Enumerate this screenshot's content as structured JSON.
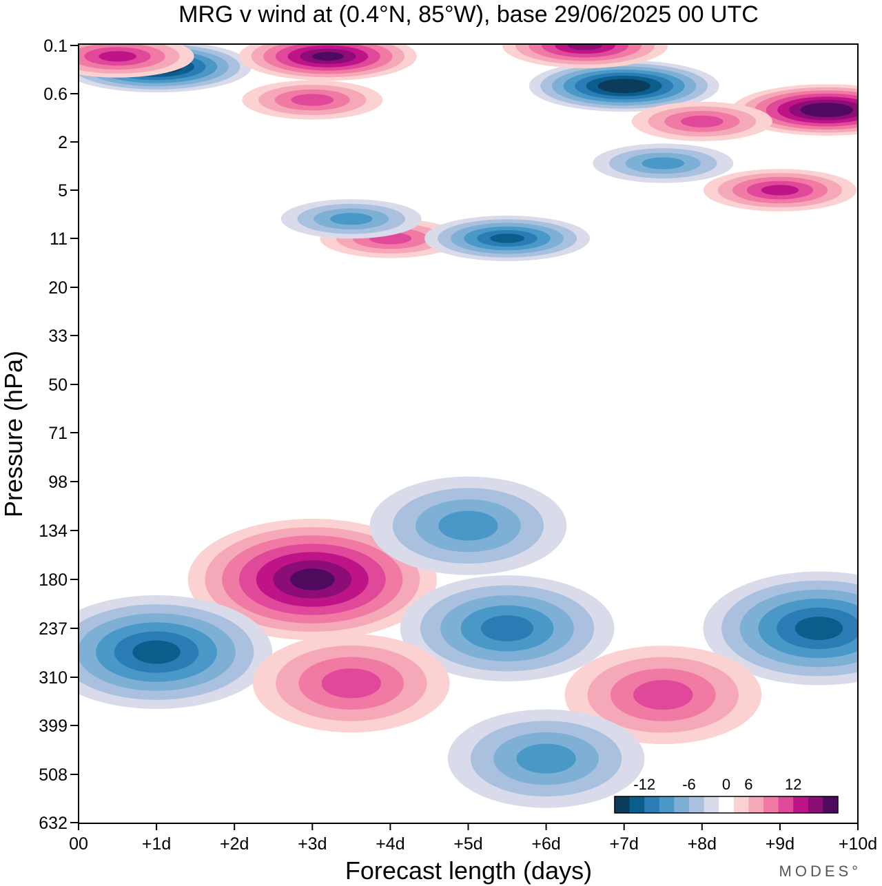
{
  "chart_data": {
    "type": "heatmap",
    "title": "MRG v wind at (0.4°N, 85°W),  base 29/06/2025  00 UTC",
    "xlabel": "Forecast length (days)",
    "ylabel": "Pressure (hPa)",
    "x_ticks": [
      "00",
      "+1d",
      "+2d",
      "+3d",
      "+4d",
      "+5d",
      "+6d",
      "+7d",
      "+8d",
      "+9d",
      "+10d"
    ],
    "xlim_days": [
      0,
      10
    ],
    "y_ticks": [
      "0.1",
      "0.6",
      "2",
      "5",
      "11",
      "20",
      "33",
      "50",
      "71",
      "98",
      "134",
      "180",
      "237",
      "310",
      "399",
      "508",
      "632"
    ],
    "y_scale": "log (pressure, top = 0.1 hPa)",
    "colorbar": {
      "tick_labels": [
        "-12",
        "-6",
        "0",
        "6",
        "12"
      ],
      "levels": [
        -16,
        -14,
        -12,
        -10,
        -8,
        -6,
        -4,
        -2,
        2,
        4,
        6,
        8,
        10,
        12,
        14,
        16
      ],
      "colors": [
        "#0c3c5c",
        "#0a5e8c",
        "#2a7db4",
        "#4a98c8",
        "#7eb0d6",
        "#a9c1de",
        "#d9dbea",
        "#ffffff",
        "#fbd1d1",
        "#f5a8b8",
        "#f07aa4",
        "#e0489a",
        "#bf1488",
        "#8c0c78",
        "#4e0a5c"
      ],
      "placement": "bottom-right inside plot"
    },
    "features": [
      {
        "day": 3.0,
        "hPa": 180,
        "v": 14,
        "kind": "max"
      },
      {
        "day": 1.0,
        "hPa": 270,
        "v": -12,
        "kind": "min"
      },
      {
        "day": 5.5,
        "hPa": 237,
        "v": -10,
        "kind": "min"
      },
      {
        "day": 9.5,
        "hPa": 237,
        "v": -12,
        "kind": "min"
      },
      {
        "day": 3.5,
        "hPa": 320,
        "v": 8,
        "kind": "max"
      },
      {
        "day": 7.5,
        "hPa": 340,
        "v": 8,
        "kind": "max"
      },
      {
        "day": 6.0,
        "hPa": 470,
        "v": -8,
        "kind": "min"
      },
      {
        "day": 5.0,
        "hPa": 130,
        "v": -8,
        "kind": "min"
      },
      {
        "day": 1.0,
        "hPa": 0.22,
        "v": -16,
        "kind": "min"
      },
      {
        "day": 7.0,
        "hPa": 0.45,
        "v": -16,
        "kind": "min"
      },
      {
        "day": 9.6,
        "hPa": 0.9,
        "v": 16,
        "kind": "max"
      },
      {
        "day": 3.2,
        "hPa": 0.15,
        "v": 14,
        "kind": "max"
      },
      {
        "day": 6.5,
        "hPa": 0.1,
        "v": 12,
        "kind": "max"
      },
      {
        "day": 0.5,
        "hPa": 0.15,
        "v": 10,
        "kind": "max"
      },
      {
        "day": 9.0,
        "hPa": 5,
        "v": 10,
        "kind": "max"
      },
      {
        "day": 3.0,
        "hPa": 0.7,
        "v": 8,
        "kind": "max"
      },
      {
        "day": 8.0,
        "hPa": 1.2,
        "v": 8,
        "kind": "max"
      },
      {
        "day": 4.0,
        "hPa": 11,
        "v": 8,
        "kind": "max"
      },
      {
        "day": 5.5,
        "hPa": 11,
        "v": -12,
        "kind": "min"
      },
      {
        "day": 7.5,
        "hPa": 3,
        "v": -8,
        "kind": "min"
      },
      {
        "day": 3.5,
        "hPa": 8,
        "v": -8,
        "kind": "min"
      }
    ]
  },
  "branding": {
    "text": "MODES°"
  }
}
